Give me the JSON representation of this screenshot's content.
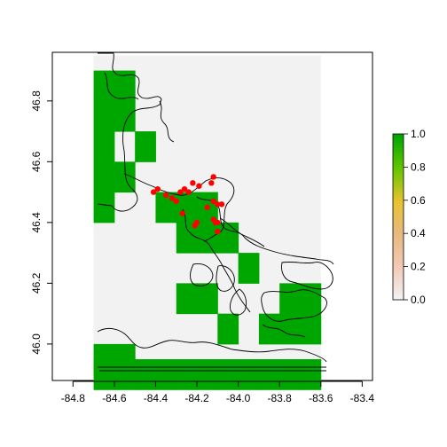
{
  "chart_data": {
    "type": "heatmap",
    "title": "",
    "xlabel": "",
    "ylabel": "",
    "xlim": [
      -84.9,
      -83.35
    ],
    "ylim": [
      45.88,
      46.96
    ],
    "x_ticks": [
      "-84.8",
      "-84.6",
      "-84.4",
      "-84.2",
      "-84.0",
      "-83.8",
      "-83.6",
      "-83.4"
    ],
    "x_tick_values": [
      -84.8,
      -84.6,
      -84.4,
      -84.2,
      -84.0,
      -83.8,
      -83.6,
      -83.4
    ],
    "y_ticks": [
      "46.0",
      "46.2",
      "46.4",
      "46.6",
      "46.8"
    ],
    "y_tick_values": [
      46.0,
      46.2,
      46.4,
      46.6,
      46.8
    ],
    "grid": false,
    "raster_extent": {
      "x": [
        -84.7,
        -83.6
      ],
      "y": [
        45.87,
        46.95
      ]
    },
    "cell_size": {
      "dx": 0.1,
      "dy": 0.1
    },
    "colors": {
      "presence": "#00a600",
      "absence": "#f2f2f2",
      "points": "#ff0000",
      "outline": "#000000"
    },
    "legend": {
      "placement": "right",
      "ticks": [
        "0.0",
        "0.2",
        "0.4",
        "0.6",
        "0.8",
        "1.0"
      ],
      "tick_values": [
        0.0,
        0.2,
        0.4,
        0.6,
        0.8,
        1.0
      ],
      "colors": [
        "#f2f2f2",
        "#f2c9b5",
        "#e6b97e",
        "#e8c32e",
        "#63c600",
        "#00a600"
      ]
    },
    "cells_value_1": [
      [
        -84.7,
        46.85
      ],
      [
        -84.6,
        46.85
      ],
      [
        -84.7,
        46.75
      ],
      [
        -84.6,
        46.75
      ],
      [
        -84.7,
        46.65
      ],
      [
        -84.5,
        46.65
      ],
      [
        -84.7,
        46.55
      ],
      [
        -84.6,
        46.55
      ],
      [
        -84.7,
        46.45
      ],
      [
        -84.4,
        46.45
      ],
      [
        -84.3,
        46.45
      ],
      [
        -84.2,
        46.45
      ],
      [
        -84.3,
        46.35
      ],
      [
        -84.2,
        46.35
      ],
      [
        -84.1,
        46.35
      ],
      [
        -84.0,
        46.25
      ],
      [
        -84.3,
        46.15
      ],
      [
        -84.2,
        46.15
      ],
      [
        -83.8,
        46.15
      ],
      [
        -83.7,
        46.15
      ],
      [
        -84.1,
        46.05
      ],
      [
        -83.9,
        46.05
      ],
      [
        -83.8,
        46.05
      ],
      [
        -83.7,
        46.05
      ],
      [
        -84.7,
        45.95
      ],
      [
        -84.6,
        45.95
      ],
      [
        -84.7,
        45.9
      ],
      [
        -84.6,
        45.9
      ],
      [
        -84.5,
        45.9
      ],
      [
        -84.4,
        45.9
      ],
      [
        -84.3,
        45.9
      ],
      [
        -84.2,
        45.9
      ],
      [
        -84.1,
        45.9
      ],
      [
        -84.0,
        45.9
      ],
      [
        -83.9,
        45.9
      ],
      [
        -83.8,
        45.9
      ],
      [
        -83.7,
        45.9
      ]
    ],
    "points": [
      [
        -84.41,
        46.5
      ],
      [
        -84.39,
        46.51
      ],
      [
        -84.35,
        46.49
      ],
      [
        -84.32,
        46.48
      ],
      [
        -84.3,
        46.47
      ],
      [
        -84.28,
        46.5
      ],
      [
        -84.26,
        46.51
      ],
      [
        -84.24,
        46.5
      ],
      [
        -84.22,
        46.53
      ],
      [
        -84.19,
        46.52
      ],
      [
        -84.13,
        46.53
      ],
      [
        -84.12,
        46.55
      ],
      [
        -84.12,
        46.47
      ],
      [
        -84.1,
        46.46
      ],
      [
        -84.08,
        46.46
      ],
      [
        -84.15,
        46.45
      ],
      [
        -84.12,
        46.41
      ],
      [
        -84.11,
        46.4
      ],
      [
        -84.1,
        46.4
      ],
      [
        -84.27,
        46.43
      ],
      [
        -84.21,
        46.39
      ],
      [
        -84.1,
        46.37
      ],
      [
        -84.2,
        46.4
      ]
    ]
  }
}
